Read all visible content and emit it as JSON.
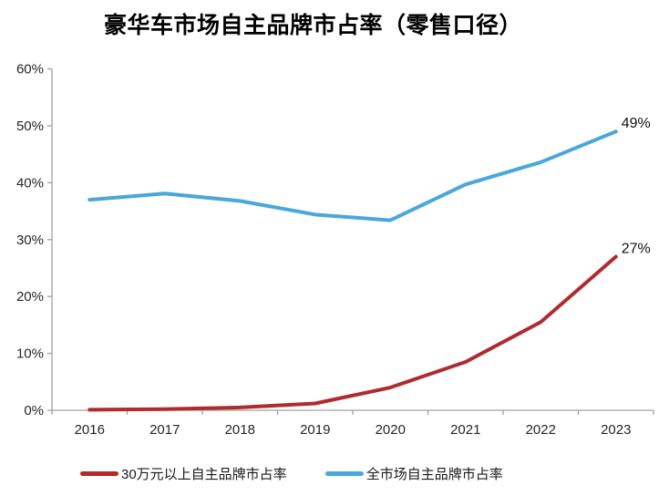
{
  "title": "豪华车市场自主品牌市占率（零售口径）",
  "chart_data": {
    "type": "line",
    "title": "豪华车市场自主品牌市占率（零售口径）",
    "categories": [
      "2016",
      "2017",
      "2018",
      "2019",
      "2020",
      "2021",
      "2022",
      "2023"
    ],
    "series": [
      {
        "name": "30万元以上自主品牌市占率",
        "color": "#b02a2e",
        "values": [
          0.1,
          0.2,
          0.5,
          1.2,
          4.0,
          8.5,
          15.5,
          27.0
        ],
        "end_label": "27%"
      },
      {
        "name": "全市场自主品牌市占率",
        "color": "#4aa7da",
        "values": [
          37.0,
          38.1,
          36.8,
          34.4,
          33.4,
          39.7,
          43.6,
          49.0
        ],
        "end_label": "49%"
      }
    ],
    "xlabel": "",
    "ylabel": "",
    "y_ticks": [
      "0%",
      "10%",
      "20%",
      "30%",
      "40%",
      "50%",
      "60%"
    ],
    "ylim": [
      0,
      60
    ],
    "grid": false,
    "legend_position": "bottom",
    "colors": {
      "axis": "#a0a0a0",
      "tick_text": "#262626",
      "annotation_text": "#111111",
      "background": "#ffffff"
    }
  }
}
